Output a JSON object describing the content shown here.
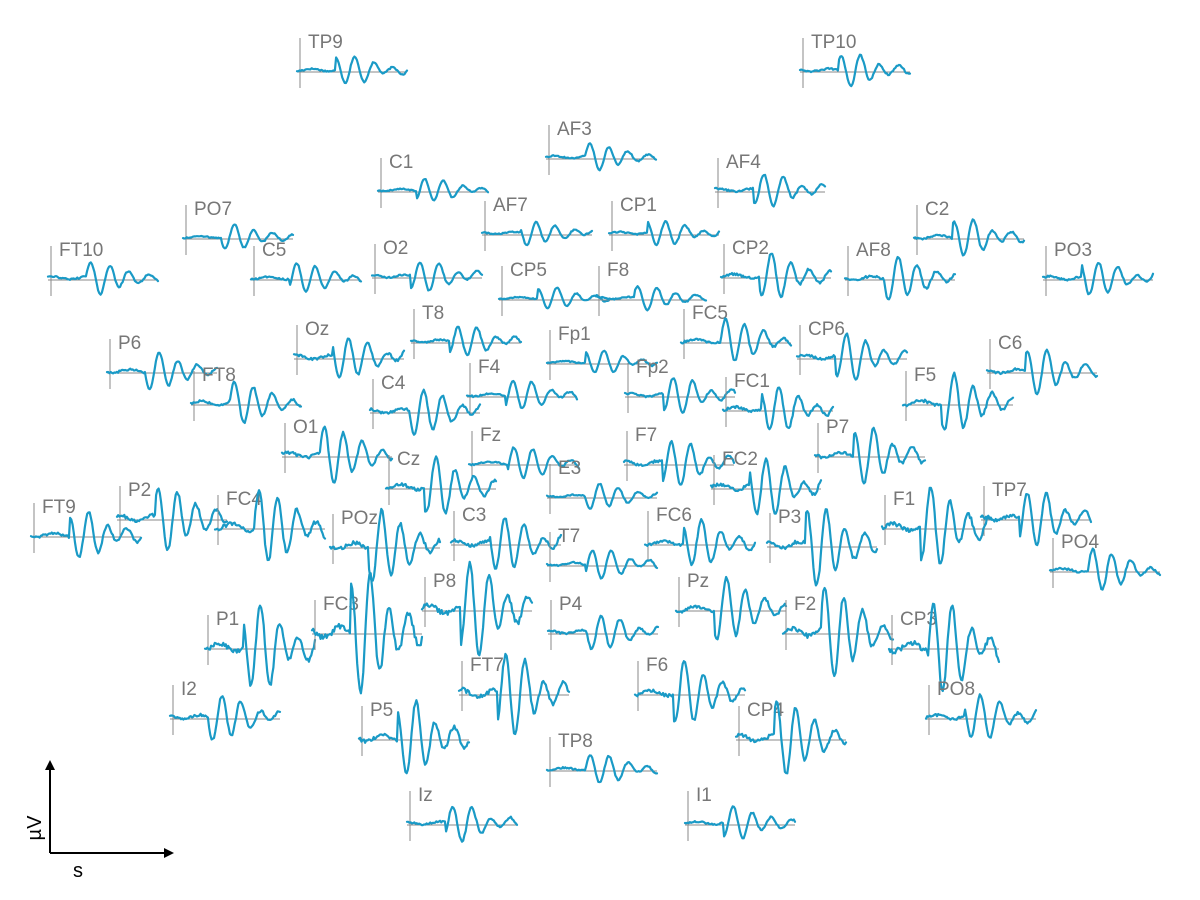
{
  "chart_data": {
    "type": "line",
    "plot_kind": "topographic channel grid",
    "xlabel": "s",
    "ylabel": "µV",
    "colors": {
      "trace": "#1a9ac6",
      "frame": "#8a8a8a",
      "label": "#777777",
      "axis": "#000000"
    },
    "channels": [
      {
        "name": "TP9",
        "amp": 0.25
      },
      {
        "name": "TP10",
        "amp": 0.3
      },
      {
        "name": "AF3",
        "amp": 0.2
      },
      {
        "name": "C1",
        "amp": 0.15
      },
      {
        "name": "AF4",
        "amp": 0.35
      },
      {
        "name": "PO7",
        "amp": 0.15
      },
      {
        "name": "AF7",
        "amp": 0.15
      },
      {
        "name": "CP1",
        "amp": 0.2
      },
      {
        "name": "C2",
        "amp": 0.4
      },
      {
        "name": "FT10",
        "amp": 0.3
      },
      {
        "name": "C5",
        "amp": 0.3
      },
      {
        "name": "O2",
        "amp": 0.3
      },
      {
        "name": "CP2",
        "amp": 0.55
      },
      {
        "name": "AF8",
        "amp": 0.55
      },
      {
        "name": "PO3",
        "amp": 0.4
      },
      {
        "name": "CP5",
        "amp": 0.1
      },
      {
        "name": "F8",
        "amp": 0.15
      },
      {
        "name": "FC5",
        "amp": 0.55
      },
      {
        "name": "T8",
        "amp": 0.3
      },
      {
        "name": "CP6",
        "amp": 0.6
      },
      {
        "name": "P6",
        "amp": 0.4
      },
      {
        "name": "Oz",
        "amp": 0.55
      },
      {
        "name": "Fp1",
        "amp": 0.15
      },
      {
        "name": "C6",
        "amp": 0.55
      },
      {
        "name": "FT8",
        "amp": 0.5
      },
      {
        "name": "F4",
        "amp": 0.3
      },
      {
        "name": "Fp2",
        "amp": 0.4
      },
      {
        "name": "F5",
        "amp": 0.8
      },
      {
        "name": "C4",
        "amp": 0.6
      },
      {
        "name": "FC1",
        "amp": 0.6
      },
      {
        "name": "P7",
        "amp": 0.75
      },
      {
        "name": "O1",
        "amp": 0.8
      },
      {
        "name": "Fz",
        "amp": 0.35
      },
      {
        "name": "F7",
        "amp": 0.6
      },
      {
        "name": "Cz",
        "amp": 0.8
      },
      {
        "name": "E3",
        "amp": 0.2
      },
      {
        "name": "FC2",
        "amp": 0.9
      },
      {
        "name": "FT9",
        "amp": 0.6
      },
      {
        "name": "P2",
        "amp": 0.9
      },
      {
        "name": "FC4",
        "amp": 1.2
      },
      {
        "name": "TP7",
        "amp": 0.8
      },
      {
        "name": "F1",
        "amp": 1.2
      },
      {
        "name": "POz",
        "amp": 1.1
      },
      {
        "name": "C3",
        "amp": 0.8
      },
      {
        "name": "FC6",
        "amp": 0.6
      },
      {
        "name": "P3",
        "amp": 1.2
      },
      {
        "name": "PO4",
        "amp": 0.5
      },
      {
        "name": "T7",
        "amp": 0.3
      },
      {
        "name": "P8",
        "amp": 1.5
      },
      {
        "name": "Pz",
        "amp": 0.9
      },
      {
        "name": "P4",
        "amp": 0.4
      },
      {
        "name": "P1",
        "amp": 1.4
      },
      {
        "name": "FC3",
        "amp": 2.0
      },
      {
        "name": "F2",
        "amp": 1.4
      },
      {
        "name": "CP3",
        "amp": 1.6
      },
      {
        "name": "FT7",
        "amp": 1.3
      },
      {
        "name": "F6",
        "amp": 0.9
      },
      {
        "name": "I2",
        "amp": 0.6
      },
      {
        "name": "PO8",
        "amp": 0.6
      },
      {
        "name": "P5",
        "amp": 1.1
      },
      {
        "name": "CP4",
        "amp": 1.1
      },
      {
        "name": "TP8",
        "amp": 0.3
      },
      {
        "name": "Iz",
        "amp": 0.4
      },
      {
        "name": "I1",
        "amp": 0.3
      }
    ]
  }
}
